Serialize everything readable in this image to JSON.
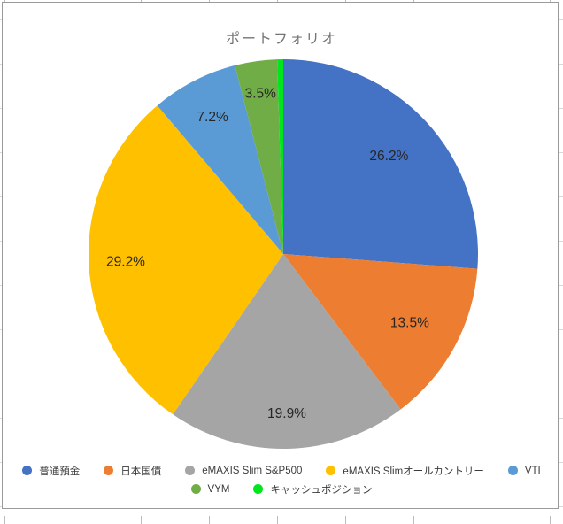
{
  "chart_data": {
    "type": "pie",
    "title": "ポートフォリオ",
    "start_angle_deg": 0,
    "direction": "clockwise",
    "legend_position": "bottom",
    "data_label_format": "percent",
    "title_color": "#757575",
    "data_label_color": "#262626",
    "border_color": "#9a9a9a",
    "slices": [
      {
        "label": "普通預金",
        "value": 26.2,
        "color": "#4472C4",
        "data_label": "26.2%"
      },
      {
        "label": "日本国債",
        "value": 13.5,
        "color": "#ED7D31",
        "data_label": "13.5%"
      },
      {
        "label": "eMAXIS Slim S&P500",
        "value": 19.9,
        "color": "#A5A5A5",
        "data_label": "19.9%"
      },
      {
        "label": "eMAXIS Slimオールカントリー",
        "value": 29.2,
        "color": "#FFC000",
        "data_label": "29.2%"
      },
      {
        "label": "VTI",
        "value": 7.2,
        "color": "#5B9BD5",
        "data_label": "7.2%"
      },
      {
        "label": "VYM",
        "value": 3.5,
        "color": "#70AD47",
        "data_label": "3.5%"
      },
      {
        "label": "キャッシュポジション",
        "value": 0.5,
        "color": "#00E51C",
        "data_label": ""
      }
    ],
    "legend_rows": [
      [
        0,
        1,
        2,
        3,
        4
      ],
      [
        5,
        6
      ]
    ]
  }
}
